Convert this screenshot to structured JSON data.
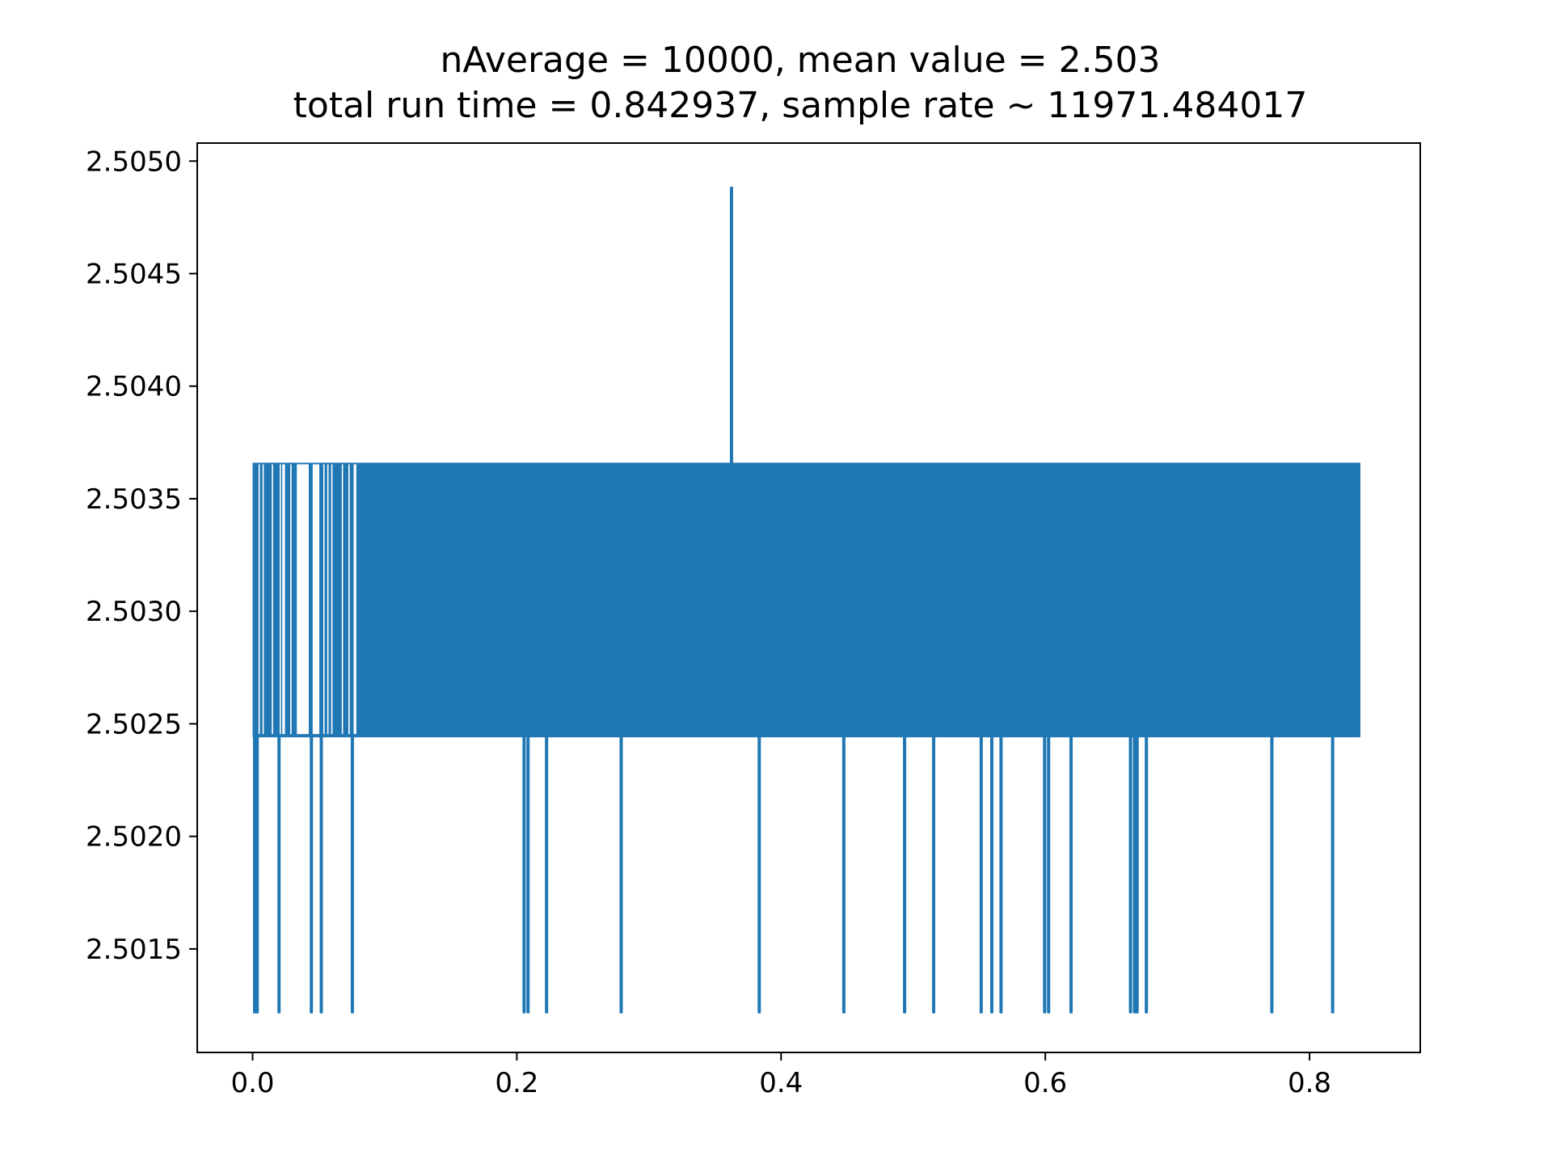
{
  "chart_data": {
    "type": "line",
    "title": "nAverage = 10000, mean value = 2.503",
    "subtitle": "total run time = 0.842937, sample rate ~ 11971.484017",
    "xlabel": "",
    "ylabel": "",
    "xlim": [
      -0.0419,
      0.8838
    ],
    "ylim": [
      2.50104,
      2.50508
    ],
    "x_ticks": [
      0.0,
      0.2,
      0.4,
      0.6,
      0.8
    ],
    "x_tick_labels": [
      "0.0",
      "0.2",
      "0.4",
      "0.6",
      "0.8"
    ],
    "y_ticks": [
      2.5015,
      2.502,
      2.5025,
      2.503,
      2.5035,
      2.504,
      2.5045,
      2.505
    ],
    "y_tick_labels": [
      "2.5015",
      "2.5020",
      "2.5025",
      "2.5030",
      "2.5035",
      "2.5040",
      "2.5045",
      "2.5050"
    ],
    "grid": false,
    "color": "#1f77b4",
    "series": [
      {
        "x_range": [
          0.0,
          0.8385
        ],
        "band_low": 2.50244,
        "band_high": 2.50366,
        "low_value": 2.50122,
        "high_spike": {
          "x": 0.3625,
          "value": 2.50488
        },
        "low_spike_x": [
          0.0015,
          0.0035,
          0.02,
          0.0445,
          0.052,
          0.0755,
          0.2055,
          0.2085,
          0.2225,
          0.279,
          0.3835,
          0.4475,
          0.4935,
          0.5155,
          0.5515,
          0.5595,
          0.5665,
          0.5995,
          0.6025,
          0.6195,
          0.6645,
          0.6675,
          0.6695,
          0.6765,
          0.7715,
          0.8175
        ],
        "gaps_x": [
          [
            0.0045,
            0.0055
          ],
          [
            0.0075,
            0.0085
          ],
          [
            0.0145,
            0.0155
          ],
          [
            0.0205,
            0.0215
          ],
          [
            0.0225,
            0.0245
          ],
          [
            0.0285,
            0.0295
          ],
          [
            0.0335,
            0.0425
          ],
          [
            0.0455,
            0.0505
          ],
          [
            0.0535,
            0.0545
          ],
          [
            0.0565,
            0.0575
          ],
          [
            0.0595,
            0.0605
          ],
          [
            0.0675,
            0.0685
          ],
          [
            0.0725,
            0.0735
          ],
          [
            0.0765,
            0.0785
          ]
        ]
      }
    ]
  }
}
